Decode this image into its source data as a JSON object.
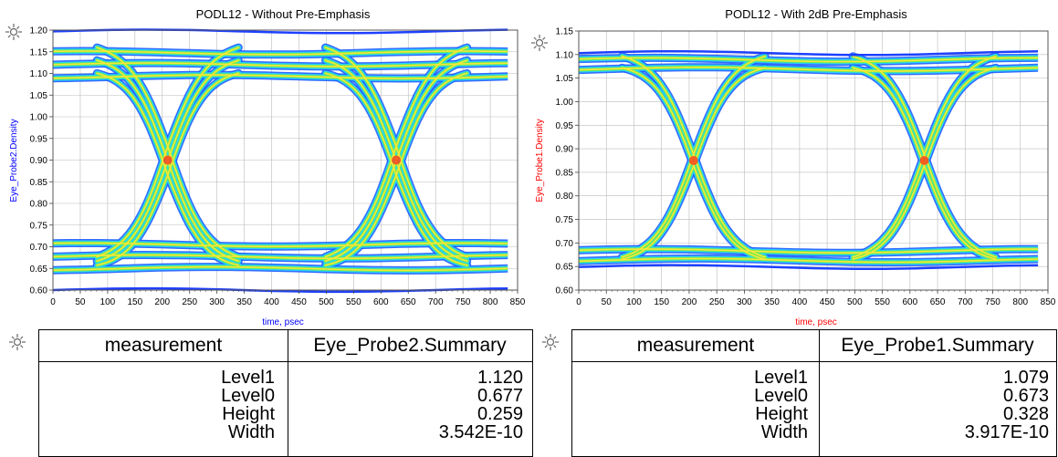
{
  "chart_data": [
    {
      "type": "line",
      "title": "PODL12 - Without Pre-Emphasis",
      "xlabel": "time, psec",
      "ylabel": "Eye_Probe2.Density",
      "label_color": "#0000ff",
      "xlim": [
        0,
        850
      ],
      "ylim": [
        0.6,
        1.2
      ],
      "xticks": [
        0,
        50,
        100,
        150,
        200,
        250,
        300,
        350,
        400,
        450,
        500,
        550,
        600,
        650,
        700,
        750,
        800,
        850
      ],
      "yticks": [
        0.6,
        0.65,
        0.7,
        0.75,
        0.8,
        0.85,
        0.9,
        0.95,
        1.0,
        1.05,
        1.1,
        1.15,
        1.2
      ],
      "ytick_labels": [
        "0.60",
        "0.65",
        "0.70",
        "0.75",
        "0.80",
        "0.85",
        "0.90",
        "0.95",
        "1.00",
        "1.05",
        "1.10",
        "1.15",
        "1.20"
      ],
      "grid": true,
      "eye": {
        "crossings": [
          210,
          628
        ],
        "cross_level": 0.9,
        "level1": 1.12,
        "level0": 0.677,
        "spread": 0.055,
        "period": 418,
        "x_end": 832
      }
    },
    {
      "type": "line",
      "title": "PODL12 - With 2dB Pre-Emphasis",
      "xlabel": "time, psec",
      "ylabel": "Eye_Probe1.Density",
      "label_color": "#ff0000",
      "xlim": [
        0,
        850
      ],
      "ylim": [
        0.6,
        1.15
      ],
      "xticks": [
        0,
        50,
        100,
        150,
        200,
        250,
        300,
        350,
        400,
        450,
        500,
        550,
        600,
        650,
        700,
        750,
        800,
        850
      ],
      "yticks": [
        0.6,
        0.65,
        0.7,
        0.75,
        0.8,
        0.85,
        0.9,
        0.95,
        1.0,
        1.05,
        1.1,
        1.15
      ],
      "ytick_labels": [
        "0.60",
        "0.65",
        "0.70",
        "0.75",
        "0.80",
        "0.85",
        "0.90",
        "0.95",
        "1.00",
        "1.05",
        "1.10",
        "1.15"
      ],
      "grid": true,
      "eye": {
        "crossings": [
          208,
          626
        ],
        "cross_level": 0.875,
        "level1": 1.079,
        "level0": 0.673,
        "spread": 0.02,
        "period": 418,
        "x_end": 832
      }
    }
  ],
  "tables": [
    {
      "header": [
        "measurement",
        "Eye_Probe2.Summary"
      ],
      "rows": [
        {
          "label": "Level1",
          "value": "1.120"
        },
        {
          "label": "Level0",
          "value": "0.677"
        },
        {
          "label": "Height",
          "value": "0.259"
        },
        {
          "label": "Width",
          "value": "3.542E-10"
        }
      ]
    },
    {
      "header": [
        "measurement",
        "Eye_Probe1.Summary"
      ],
      "rows": [
        {
          "label": "Level1",
          "value": "1.079"
        },
        {
          "label": "Level0",
          "value": "0.673"
        },
        {
          "label": "Height",
          "value": "0.328"
        },
        {
          "label": "Width",
          "value": "3.917E-10"
        }
      ]
    }
  ],
  "icons": {
    "marker": "crosshair-marker-icon"
  }
}
